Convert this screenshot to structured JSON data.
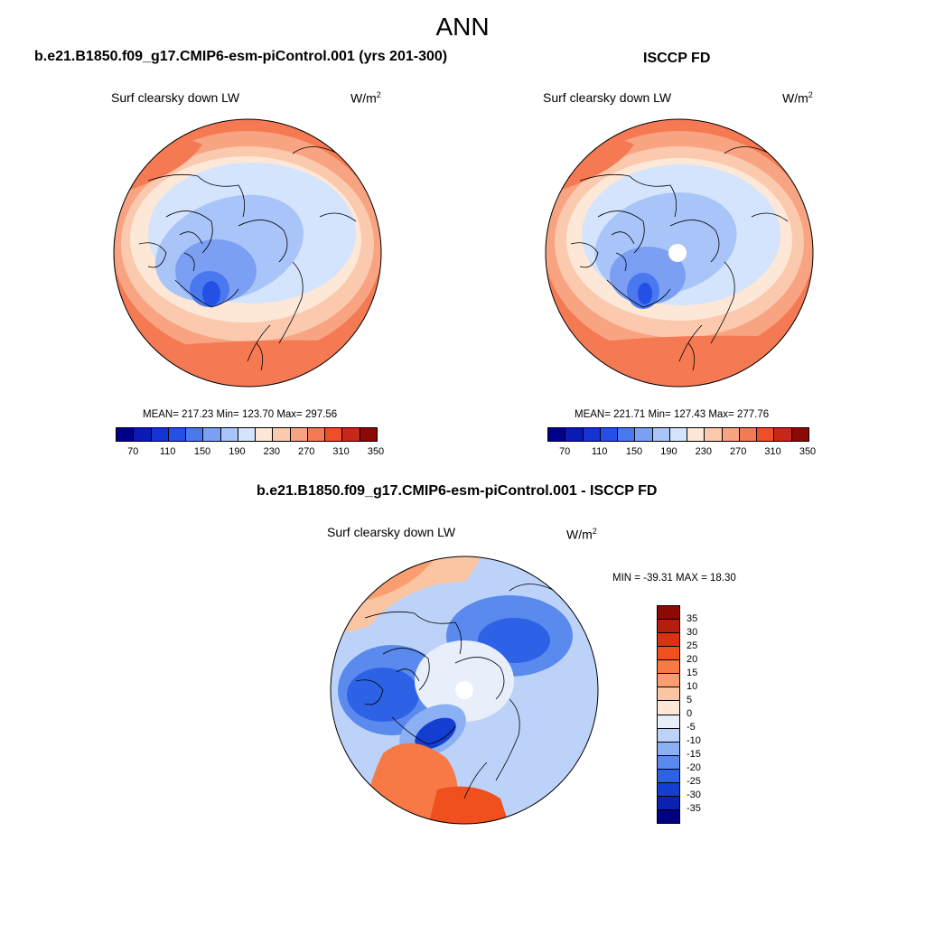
{
  "title": "ANN",
  "panels": {
    "model": {
      "title": "b.e21.B1850.f09_g17.CMIP6-esm-piControl.001 (yrs 201-300)",
      "subtitle": "Surf clearsky down LW",
      "units": "W/m",
      "units_sup": "2",
      "stats": "MEAN= 217.23  Min= 123.70  Max= 297.56"
    },
    "obs": {
      "title": "ISCCP FD",
      "subtitle": "Surf clearsky down LW",
      "units": "W/m",
      "units_sup": "2",
      "stats": "MEAN= 221.71  Min= 127.43  Max= 277.76"
    },
    "diff": {
      "title": "b.e21.B1850.f09_g17.CMIP6-esm-piControl.001 - ISCCP FD",
      "subtitle": "Surf clearsky down LW",
      "units": "W/m",
      "units_sup": "2",
      "stats": "MIN = -39.31 MAX =  18.30"
    }
  },
  "abs_colorbar": {
    "tick_labels": [
      "70",
      "110",
      "150",
      "190",
      "230",
      "270",
      "310",
      "350"
    ],
    "colors": [
      "#00008c",
      "#0a1ab4",
      "#1433d2",
      "#2450e6",
      "#4a78ee",
      "#7ba0f3",
      "#a9c4f8",
      "#d4e4fc",
      "#fde8d8",
      "#fbc9ad",
      "#f8a482",
      "#f57a54",
      "#ef4f28",
      "#c8281a",
      "#8c0a04"
    ]
  },
  "diff_colorbar": {
    "tick_labels": [
      "35",
      "30",
      "25",
      "20",
      "15",
      "10",
      "5",
      "0",
      "-5",
      "-10",
      "-15",
      "-20",
      "-25",
      "-30",
      "-35"
    ],
    "colors": [
      "#8c0a04",
      "#b41e0c",
      "#d83214",
      "#f0501e",
      "#f77a46",
      "#fa9e70",
      "#fbc4a2",
      "#fde8d8",
      "#e8eefa",
      "#bcd2f8",
      "#8cb0f4",
      "#5a8aee",
      "#2e62e6",
      "#143ed2",
      "#0a22b0",
      "#000080"
    ]
  },
  "map_colors": {
    "deep_blue": "#2450e6",
    "blue": "#4a78ee",
    "mid_blue": "#7ba0f3",
    "light_blue": "#a9c4f8",
    "pale_blue": "#d4e4fc",
    "cream": "#fde8d8",
    "peach": "#fbc9ad",
    "salmon": "#f8a482",
    "orange": "#f57a54"
  }
}
